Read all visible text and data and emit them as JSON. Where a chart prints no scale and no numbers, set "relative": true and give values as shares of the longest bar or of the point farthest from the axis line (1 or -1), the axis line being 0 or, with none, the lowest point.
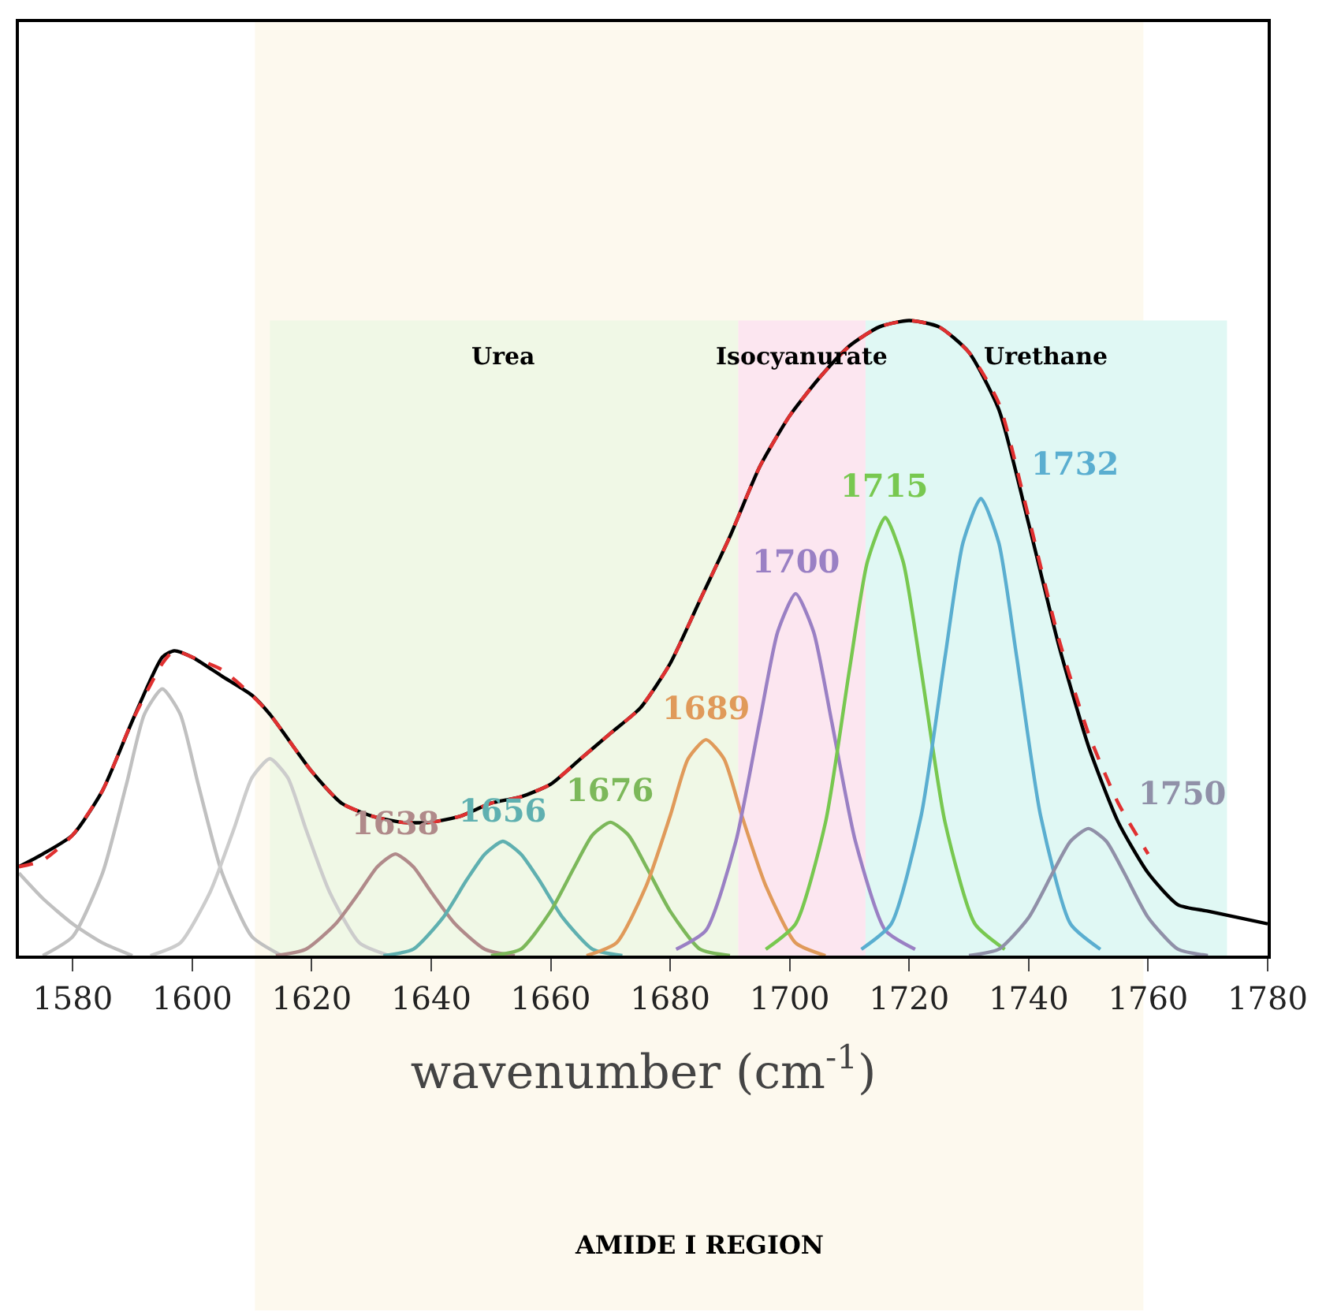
{
  "chart_data": {
    "type": "line",
    "relative": true,
    "xlabel": "wavenumber (cm$^{-1}$)",
    "xlim": [
      1571,
      1780
    ],
    "xticks": [
      1580,
      1600,
      1620,
      1640,
      1660,
      1680,
      1700,
      1720,
      1740,
      1760,
      1780
    ],
    "tick_labels": "x",
    "grid": false,
    "legend": false,
    "marker": "none",
    "bands": [
      {
        "axis": "x",
        "from": 1610.5,
        "to": 1759.2,
        "label": "AMIDE I REGION",
        "color": "#fdf9ee"
      },
      {
        "axis": "x",
        "from": 1613,
        "to": 1691.4,
        "label": "Urea",
        "color": "#f0f8e6"
      },
      {
        "axis": "x",
        "from": 1691.4,
        "to": 1712.7,
        "label": "Isocyanurate",
        "color": "#fce6f0"
      },
      {
        "axis": "x",
        "from": 1712.7,
        "to": 1773.2,
        "label": "Urethane",
        "color": "#e0f8f4"
      }
    ],
    "series": [
      {
        "color": "#c0c0c0",
        "x": [
          1571,
          1575,
          1580,
          1585,
          1590
        ],
        "values": [
          0.13,
          0.09,
          0.05,
          0.02,
          0
        ]
      },
      {
        "color": "#c0c0c0",
        "x": [
          1575,
          1580,
          1585,
          1589,
          1592,
          1595,
          1598,
          1601,
          1605,
          1610,
          1615
        ],
        "values": [
          0,
          0.03,
          0.13,
          0.27,
          0.38,
          0.42,
          0.38,
          0.27,
          0.13,
          0.03,
          0
        ]
      },
      {
        "color": "#cccccc",
        "x": [
          1593,
          1598,
          1603,
          1607,
          1610,
          1613,
          1616,
          1619,
          1623,
          1628,
          1633
        ],
        "values": [
          0,
          0.02,
          0.1,
          0.2,
          0.28,
          0.31,
          0.28,
          0.2,
          0.1,
          0.02,
          0
        ]
      },
      {
        "name": "1638",
        "color": "#b08a8a",
        "x": [
          1614,
          1619,
          1624,
          1628,
          1631,
          1634,
          1637,
          1640,
          1644,
          1649,
          1654
        ],
        "values": [
          0,
          0.01,
          0.05,
          0.1,
          0.14,
          0.16,
          0.14,
          0.1,
          0.05,
          0.01,
          0
        ]
      },
      {
        "name": "1656",
        "color": "#5fb0b0",
        "x": [
          1632,
          1637,
          1642,
          1646,
          1649,
          1652,
          1655,
          1658,
          1662,
          1667,
          1672
        ],
        "values": [
          0,
          0.01,
          0.06,
          0.12,
          0.16,
          0.18,
          0.16,
          0.12,
          0.06,
          0.01,
          0
        ]
      },
      {
        "name": "1676",
        "color": "#7cb85a",
        "x": [
          1650,
          1655,
          1660,
          1664,
          1667,
          1670,
          1673,
          1676,
          1680,
          1685,
          1690
        ],
        "values": [
          0,
          0.01,
          0.07,
          0.14,
          0.19,
          0.21,
          0.19,
          0.14,
          0.07,
          0.01,
          0
        ]
      },
      {
        "name": "1689",
        "color": "#e09a5a",
        "x": [
          1666,
          1671,
          1676,
          1680,
          1683,
          1686,
          1689,
          1692,
          1696,
          1701,
          1706
        ],
        "values": [
          0,
          0.02,
          0.11,
          0.22,
          0.31,
          0.34,
          0.31,
          0.22,
          0.11,
          0.02,
          0
        ]
      },
      {
        "name": "1700",
        "color": "#9a80c4",
        "x": [
          1681,
          1686,
          1691,
          1695,
          1698,
          1701,
          1704,
          1707,
          1711,
          1716,
          1721
        ],
        "values": [
          0.01,
          0.04,
          0.18,
          0.37,
          0.51,
          0.57,
          0.51,
          0.37,
          0.18,
          0.04,
          0.01
        ]
      },
      {
        "name": "1715",
        "color": "#78c850",
        "x": [
          1696,
          1701,
          1706,
          1710,
          1713,
          1716,
          1719,
          1722,
          1726,
          1731,
          1736
        ],
        "values": [
          0.01,
          0.05,
          0.21,
          0.45,
          0.62,
          0.69,
          0.62,
          0.45,
          0.21,
          0.05,
          0.01
        ]
      },
      {
        "name": "1732",
        "color": "#5aaed0",
        "x": [
          1712,
          1717,
          1722,
          1726,
          1729,
          1732,
          1735,
          1738,
          1742,
          1747,
          1752
        ],
        "values": [
          0.01,
          0.05,
          0.22,
          0.47,
          0.65,
          0.72,
          0.65,
          0.47,
          0.22,
          0.05,
          0.01
        ]
      },
      {
        "name": "1750",
        "color": "#9090a8",
        "x": [
          1730,
          1735,
          1740,
          1744,
          1747,
          1750,
          1753,
          1756,
          1760,
          1765,
          1770
        ],
        "values": [
          0,
          0.01,
          0.06,
          0.13,
          0.18,
          0.2,
          0.18,
          0.13,
          0.06,
          0.01,
          0
        ]
      },
      {
        "color": "#000000",
        "x": [
          1571,
          1575,
          1580,
          1585,
          1590,
          1595,
          1597,
          1600,
          1605,
          1610,
          1613,
          1620,
          1625,
          1630,
          1635,
          1640,
          1645,
          1650,
          1655,
          1660,
          1665,
          1670,
          1675,
          1680,
          1685,
          1690,
          1695,
          1700,
          1705,
          1710,
          1715,
          1720,
          1725,
          1730,
          1735,
          1740,
          1745,
          1750,
          1755,
          1760,
          1765,
          1770,
          1775,
          1780
        ],
        "values": [
          0.14,
          0.16,
          0.19,
          0.26,
          0.37,
          0.47,
          0.48,
          0.47,
          0.44,
          0.41,
          0.38,
          0.29,
          0.24,
          0.22,
          0.21,
          0.21,
          0.22,
          0.24,
          0.25,
          0.27,
          0.31,
          0.35,
          0.39,
          0.46,
          0.56,
          0.66,
          0.77,
          0.85,
          0.91,
          0.96,
          0.99,
          1.0,
          0.99,
          0.95,
          0.86,
          0.68,
          0.49,
          0.33,
          0.21,
          0.13,
          0.08,
          0.07,
          0.06,
          0.05
        ]
      },
      {
        "color": "#e03030",
        "line_style": "dashed",
        "x": [
          1571,
          1575,
          1580,
          1585,
          1590,
          1595,
          1597,
          1600,
          1605,
          1610,
          1613,
          1620,
          1625,
          1630,
          1635,
          1640,
          1645,
          1650,
          1655,
          1660,
          1665,
          1670,
          1675,
          1680,
          1685,
          1690,
          1695,
          1700,
          1705,
          1710,
          1715,
          1720,
          1725,
          1730,
          1735,
          1740,
          1745,
          1750,
          1755,
          1760
        ],
        "values": [
          0.14,
          0.15,
          0.19,
          0.26,
          0.37,
          0.46,
          0.48,
          0.47,
          0.45,
          0.41,
          0.38,
          0.29,
          0.24,
          0.22,
          0.21,
          0.21,
          0.22,
          0.24,
          0.25,
          0.27,
          0.31,
          0.35,
          0.39,
          0.46,
          0.56,
          0.66,
          0.77,
          0.85,
          0.91,
          0.96,
          0.99,
          1.0,
          0.99,
          0.95,
          0.87,
          0.69,
          0.5,
          0.35,
          0.24,
          0.16
        ]
      }
    ]
  }
}
